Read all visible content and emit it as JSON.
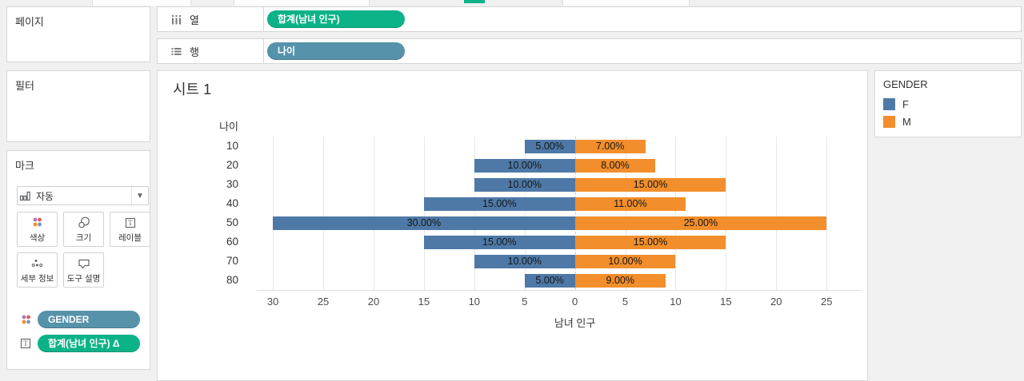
{
  "colors": {
    "bar_f": "#4e79a7",
    "bar_m": "#f28e2b",
    "pill_green": "#0db388",
    "pill_teal": "#5693ab",
    "gridline": "#e8e8e8"
  },
  "shelves": {
    "columns": {
      "label": "열",
      "pill": "합계(남녀 인구)",
      "pill_color_key": "pill_green"
    },
    "rows": {
      "label": "행",
      "pill": "나이",
      "pill_color_key": "pill_teal"
    }
  },
  "panels": {
    "pages": {
      "title": "페이지"
    },
    "filters": {
      "title": "필터"
    },
    "marks": {
      "title": "마크",
      "mark_type": "자동",
      "buttons": [
        {
          "label": "색상",
          "icon": "color-dots-icon"
        },
        {
          "label": "크기",
          "icon": "size-circles-icon"
        },
        {
          "label": "레이블",
          "icon": "label-t-icon"
        },
        {
          "label": "세부 정보",
          "icon": "detail-dots-icon"
        },
        {
          "label": "도구 설명",
          "icon": "tooltip-bubble-icon"
        }
      ],
      "pills": [
        {
          "label": "GENDER",
          "icon": "color-dots-icon",
          "color_key": "pill_teal"
        },
        {
          "label": "합계(남녀 인구) Δ",
          "icon": "label-t-icon",
          "color_key": "pill_green"
        }
      ]
    }
  },
  "sheet": {
    "title": "시트 1"
  },
  "legend": {
    "title": "GENDER",
    "items": [
      {
        "label": "F",
        "color": "#4e79a7"
      },
      {
        "label": "M",
        "color": "#f28e2b"
      }
    ]
  },
  "chart_data": {
    "type": "bar",
    "subtype": "diverging-population-pyramid",
    "title": "시트 1",
    "row_field": "나이",
    "categories": [
      "10",
      "20",
      "30",
      "40",
      "50",
      "60",
      "70",
      "80"
    ],
    "series": [
      {
        "name": "F",
        "color": "#4e79a7",
        "side": "left",
        "values": [
          5,
          10,
          10,
          15,
          30,
          15,
          10,
          5
        ]
      },
      {
        "name": "M",
        "color": "#f28e2b",
        "side": "right",
        "values": [
          7,
          8,
          15,
          11,
          25,
          15,
          10,
          9
        ]
      }
    ],
    "value_label_format": "0.00%",
    "xlabel": "남녀 인구",
    "x_domain": [
      -31.6,
      28.4
    ],
    "x_ticks": [
      {
        "v": -30,
        "label": "30"
      },
      {
        "v": -25,
        "label": "25"
      },
      {
        "v": -20,
        "label": "20"
      },
      {
        "v": -15,
        "label": "15"
      },
      {
        "v": -10,
        "label": "10"
      },
      {
        "v": -5,
        "label": "5"
      },
      {
        "v": 0,
        "label": "0"
      },
      {
        "v": 5,
        "label": "5"
      },
      {
        "v": 10,
        "label": "10"
      },
      {
        "v": 15,
        "label": "15"
      },
      {
        "v": 20,
        "label": "20"
      },
      {
        "v": 25,
        "label": "25"
      }
    ],
    "gridlines": true,
    "legend_position": "right"
  }
}
